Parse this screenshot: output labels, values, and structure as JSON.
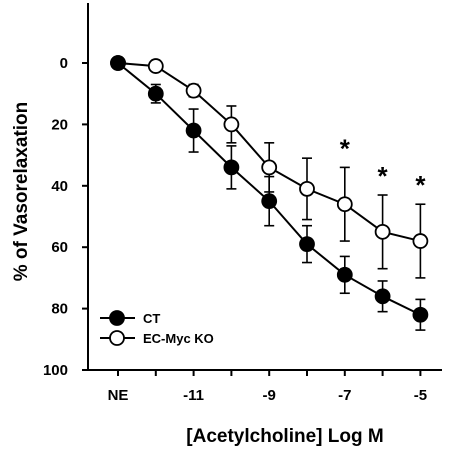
{
  "chart_data": {
    "type": "line",
    "xlabel": "[Acetylcholine] Log M",
    "ylabel": "% of Vasorelaxation",
    "ylim": [
      0,
      100
    ],
    "y_inverted": true,
    "x_categories": [
      "NE",
      "-12",
      "-11",
      "-10",
      "-9",
      "-8",
      "-7",
      "-6",
      "-5"
    ],
    "x_tick_labels": [
      {
        "index": 0,
        "label": "NE"
      },
      {
        "index": 2,
        "label": "-11"
      },
      {
        "index": 4,
        "label": "-9"
      },
      {
        "index": 6,
        "label": "-7"
      },
      {
        "index": 8,
        "label": "-5"
      }
    ],
    "y_ticks": [
      0,
      20,
      40,
      60,
      80,
      100
    ],
    "legend_position": "bottom-left",
    "series": [
      {
        "name": "CT",
        "marker": "filled-circle",
        "values": [
          0,
          10,
          22,
          34,
          45,
          59,
          69,
          76,
          82
        ],
        "errors": [
          0,
          3,
          7,
          7,
          8,
          6,
          6,
          5,
          5
        ]
      },
      {
        "name": "EC-Myc KO",
        "marker": "open-circle",
        "values": [
          0,
          1,
          9,
          20,
          34,
          41,
          46,
          55,
          58
        ],
        "errors": [
          0,
          0,
          2,
          6,
          8,
          10,
          12,
          12,
          12
        ]
      }
    ],
    "annotations": [
      {
        "index": 6,
        "text": "*"
      },
      {
        "index": 7,
        "text": "*"
      },
      {
        "index": 8,
        "text": "*"
      }
    ]
  }
}
